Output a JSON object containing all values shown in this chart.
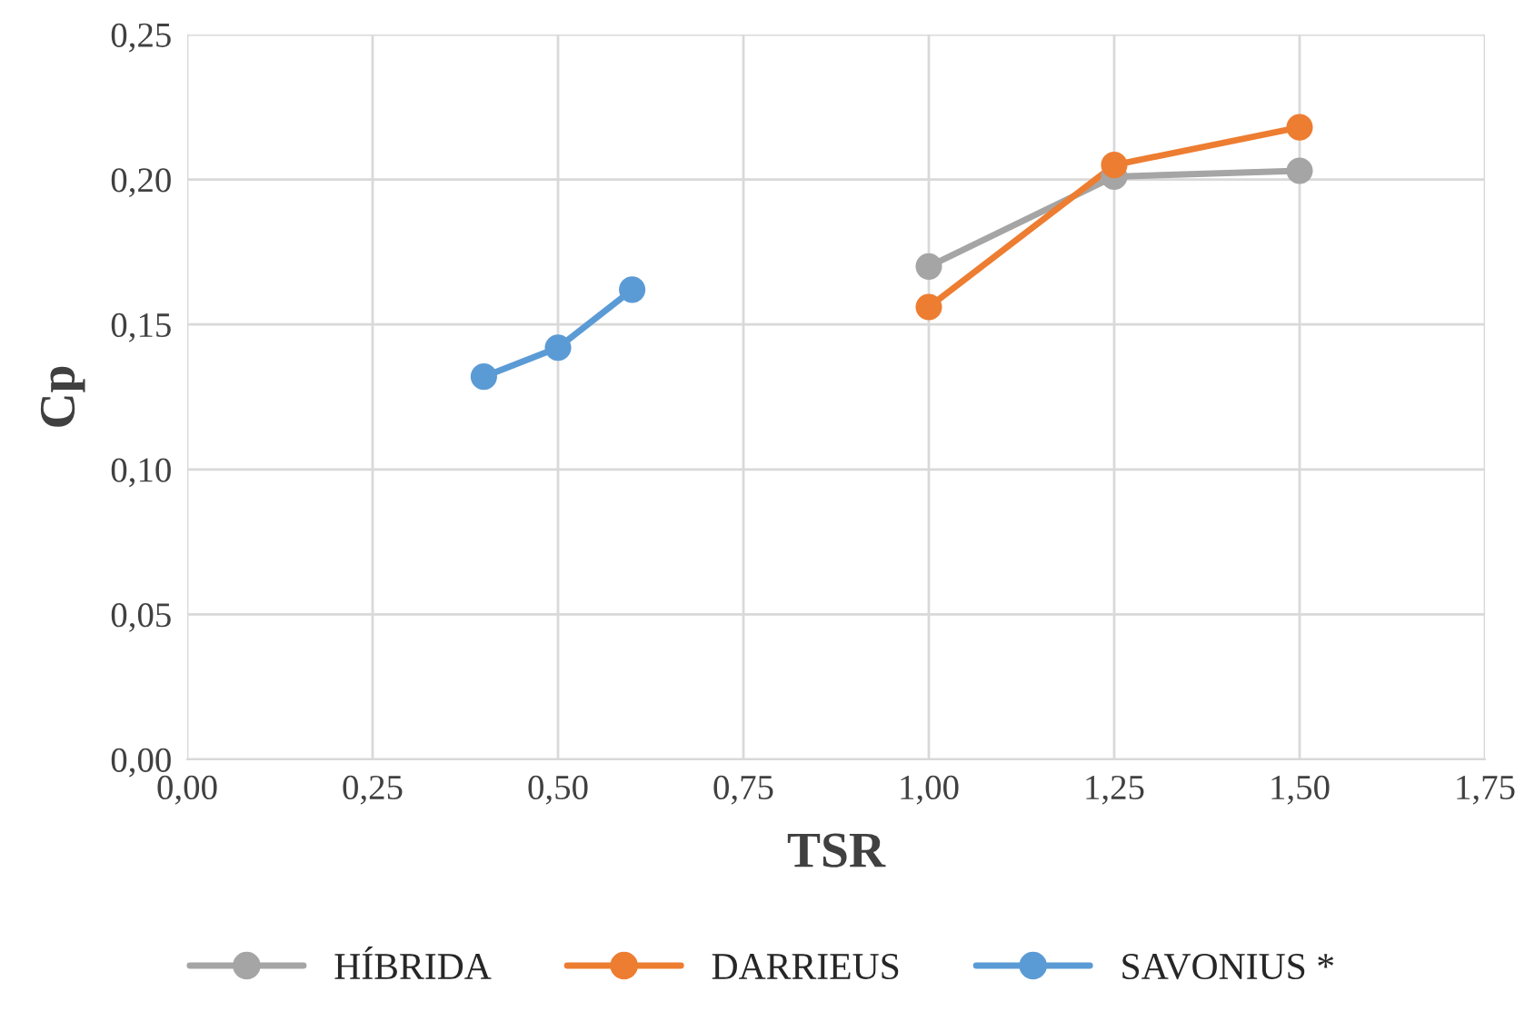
{
  "chart_data": {
    "type": "line",
    "xlabel": "TSR",
    "ylabel": "Cp",
    "xlim": [
      0,
      1.75
    ],
    "ylim": [
      0,
      0.25
    ],
    "xticks": [
      {
        "value": 0,
        "label": "0,00"
      },
      {
        "value": 0.25,
        "label": "0,25"
      },
      {
        "value": 0.5,
        "label": "0,50"
      },
      {
        "value": 0.75,
        "label": "0,75"
      },
      {
        "value": 1.0,
        "label": "1,00"
      },
      {
        "value": 1.25,
        "label": "1,25"
      },
      {
        "value": 1.5,
        "label": "1,50"
      },
      {
        "value": 1.75,
        "label": "1,75"
      }
    ],
    "yticks": [
      {
        "value": 0,
        "label": "0,00"
      },
      {
        "value": 0.05,
        "label": "0,05"
      },
      {
        "value": 0.1,
        "label": "0,10"
      },
      {
        "value": 0.15,
        "label": "0,15"
      },
      {
        "value": 0.2,
        "label": "0,20"
      },
      {
        "value": 0.25,
        "label": "0,25"
      }
    ],
    "grid": true,
    "legend": "bottom",
    "marker": "circle",
    "line_style": "solid",
    "series": [
      {
        "name": "HÍBRIDA",
        "color": "#a5a5a5",
        "x": [
          1.0,
          1.25,
          1.5
        ],
        "values": [
          0.17,
          0.201,
          0.203
        ]
      },
      {
        "name": "DARRIEUS",
        "color": "#ed7d31",
        "x": [
          1.0,
          1.25,
          1.5
        ],
        "values": [
          0.156,
          0.205,
          0.218
        ]
      },
      {
        "name": "SAVONIUS *",
        "color": "#5b9bd5",
        "x": [
          0.4,
          0.5,
          0.6
        ],
        "values": [
          0.132,
          0.142,
          0.162
        ]
      }
    ]
  }
}
